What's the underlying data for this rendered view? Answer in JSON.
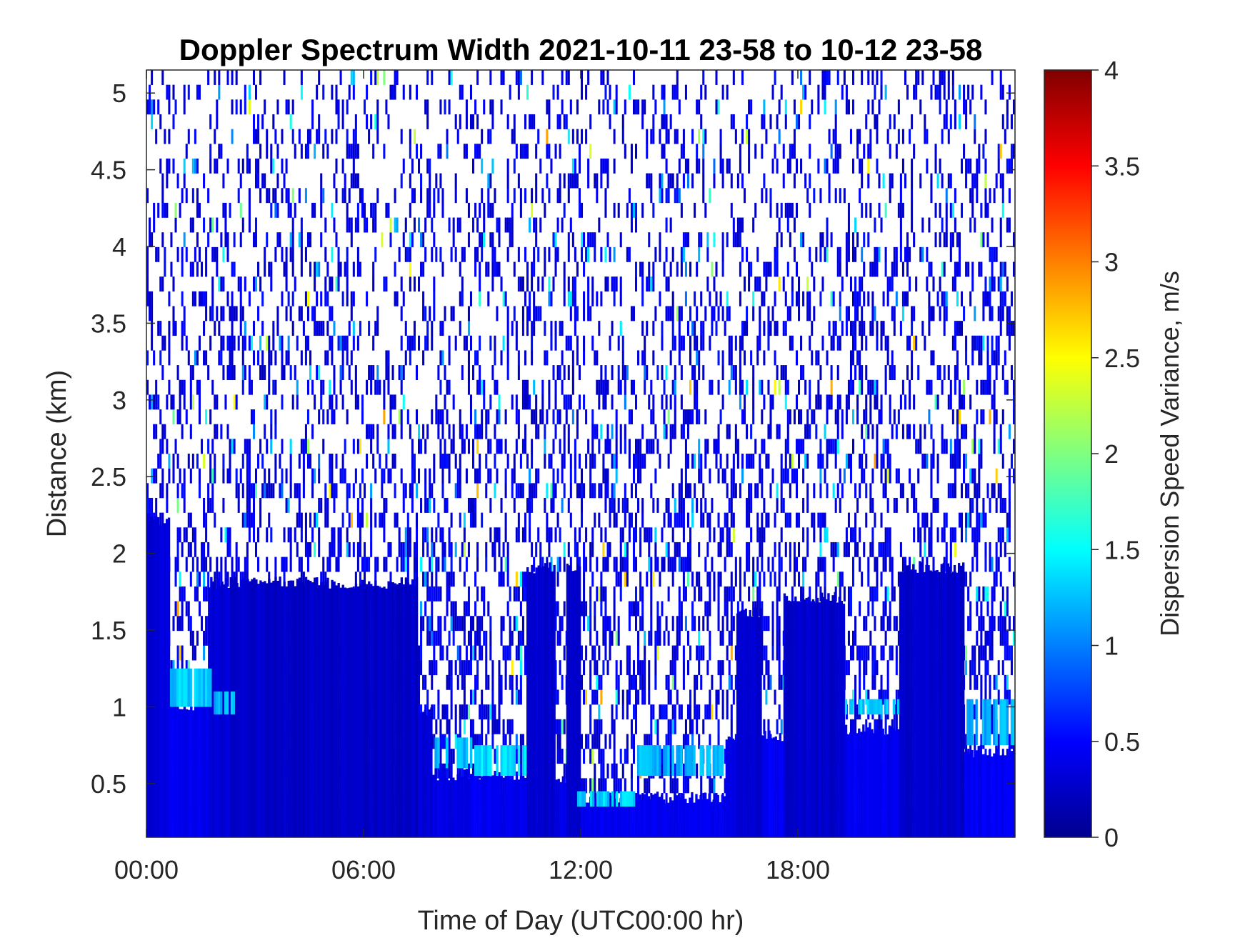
{
  "chart_data": {
    "type": "heatmap",
    "title": "Doppler Spectrum Width 2021-10-11 23-58 to 10-12 23-58",
    "xlabel": "Time of Day (UTC00:00 hr)",
    "ylabel": "Distance (km)",
    "xlim": [
      0,
      24
    ],
    "ylim": [
      0.15,
      5.15
    ],
    "x_ticks": [
      {
        "value": 0,
        "label": "00:00"
      },
      {
        "value": 6,
        "label": "06:00"
      },
      {
        "value": 12,
        "label": "12:00"
      },
      {
        "value": 18,
        "label": "18:00"
      }
    ],
    "y_ticks": [
      {
        "value": 0.5,
        "label": "0.5"
      },
      {
        "value": 1,
        "label": "1"
      },
      {
        "value": 1.5,
        "label": "1.5"
      },
      {
        "value": 2,
        "label": "2"
      },
      {
        "value": 2.5,
        "label": "2.5"
      },
      {
        "value": 3,
        "label": "3"
      },
      {
        "value": 3.5,
        "label": "3.5"
      },
      {
        "value": 4,
        "label": "4"
      },
      {
        "value": 4.5,
        "label": "4.5"
      },
      {
        "value": 5,
        "label": "5"
      }
    ],
    "colorbar": {
      "label": "Dispersion Speed Variance, m/s",
      "range": [
        0,
        4
      ],
      "colormap": "jet",
      "ticks": [
        {
          "value": 0,
          "label": "0"
        },
        {
          "value": 0.5,
          "label": "0.5"
        },
        {
          "value": 1,
          "label": "1"
        },
        {
          "value": 1.5,
          "label": "1.5"
        },
        {
          "value": 2,
          "label": "2"
        },
        {
          "value": 2.5,
          "label": "2.5"
        },
        {
          "value": 3,
          "label": "3"
        },
        {
          "value": 3.5,
          "label": "3.5"
        },
        {
          "value": 4,
          "label": "4"
        }
      ]
    },
    "dense_blocks": [
      {
        "x0": 0,
        "x1": 0.65,
        "top": 2.25,
        "value": 0.35
      },
      {
        "x0": 0.65,
        "x1": 1.7,
        "top": 1.05,
        "value": 0.45
      },
      {
        "x0": 1.7,
        "x1": 2.3,
        "top": 1.85,
        "value": 0.35
      },
      {
        "x0": 2.3,
        "x1": 3.3,
        "top": 1.85,
        "value": 0.3
      },
      {
        "x0": 3.3,
        "x1": 7.5,
        "top": 1.85,
        "value": 0.28
      },
      {
        "x0": 7.5,
        "x1": 7.9,
        "top": 1.0,
        "value": 0.35
      },
      {
        "x0": 7.9,
        "x1": 9.0,
        "top": 0.6,
        "value": 0.4
      },
      {
        "x0": 9.0,
        "x1": 10.5,
        "top": 0.6,
        "value": 0.45
      },
      {
        "x0": 10.5,
        "x1": 11.3,
        "top": 1.95,
        "value": 0.3
      },
      {
        "x0": 11.3,
        "x1": 11.6,
        "top": 0.55,
        "value": 0.4
      },
      {
        "x0": 11.6,
        "x1": 12.0,
        "top": 1.95,
        "value": 0.3
      },
      {
        "x0": 12.0,
        "x1": 16.0,
        "top": 0.45,
        "value": 0.45
      },
      {
        "x0": 16.0,
        "x1": 16.3,
        "top": 0.85,
        "value": 0.4
      },
      {
        "x0": 16.3,
        "x1": 17.0,
        "top": 1.65,
        "value": 0.3
      },
      {
        "x0": 17.0,
        "x1": 17.6,
        "top": 0.85,
        "value": 0.45
      },
      {
        "x0": 17.6,
        "x1": 19.3,
        "top": 1.75,
        "value": 0.3
      },
      {
        "x0": 19.3,
        "x1": 20.8,
        "top": 0.9,
        "value": 0.45
      },
      {
        "x0": 20.8,
        "x1": 22.6,
        "top": 1.95,
        "value": 0.3
      },
      {
        "x0": 22.6,
        "x1": 24.0,
        "top": 0.75,
        "value": 0.45
      }
    ],
    "cyan_bands": [
      {
        "x0": 0.65,
        "x1": 1.8,
        "y0": 1.0,
        "y1": 1.25,
        "value": 1.3
      },
      {
        "x0": 1.8,
        "x1": 2.5,
        "y0": 0.95,
        "y1": 1.1,
        "value": 1.2
      },
      {
        "x0": 7.9,
        "x1": 9.0,
        "y0": 0.6,
        "y1": 0.8,
        "value": 1.2
      },
      {
        "x0": 9.0,
        "x1": 10.5,
        "y0": 0.55,
        "y1": 0.75,
        "value": 1.35
      },
      {
        "x0": 11.9,
        "x1": 13.5,
        "y0": 0.35,
        "y1": 0.45,
        "value": 1.3
      },
      {
        "x0": 13.5,
        "x1": 16.0,
        "y0": 0.55,
        "y1": 0.75,
        "value": 1.2
      },
      {
        "x0": 19.3,
        "x1": 20.8,
        "y0": 0.95,
        "y1": 1.05,
        "value": 1.3
      },
      {
        "x0": 22.6,
        "x1": 24.0,
        "y0": 0.75,
        "y1": 1.05,
        "value": 1.2
      }
    ],
    "sparse_region": {
      "density_low": 0.2,
      "density_high": 0.45,
      "typical_value": 0.4
    }
  }
}
